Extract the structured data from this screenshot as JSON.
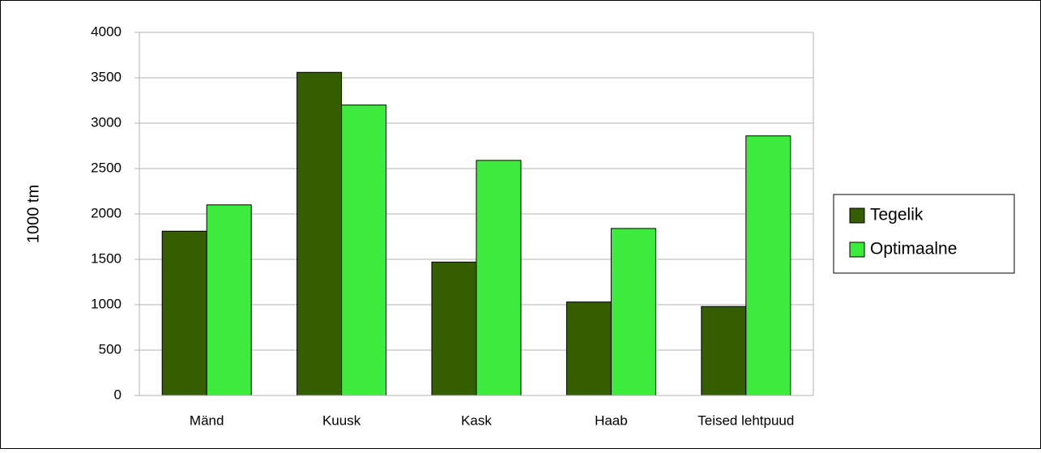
{
  "chart_data": {
    "type": "bar",
    "y_label": "1000 tm",
    "categories": [
      "Mänd",
      "Kuusk",
      "Kask",
      "Haab",
      "Teised lehtpuud"
    ],
    "series": [
      {
        "name": "Tegelik",
        "color": "#355e00",
        "values": [
          1810,
          3560,
          1470,
          1030,
          980
        ]
      },
      {
        "name": "Optimaalne",
        "color": "#3deb3d",
        "values": [
          2100,
          3200,
          2590,
          1840,
          2860
        ]
      }
    ],
    "ylim": [
      0,
      4000
    ],
    "yticks": [
      0,
      500,
      1000,
      1500,
      2000,
      2500,
      3000,
      3500,
      4000
    ],
    "grid": true,
    "legend": "right"
  }
}
